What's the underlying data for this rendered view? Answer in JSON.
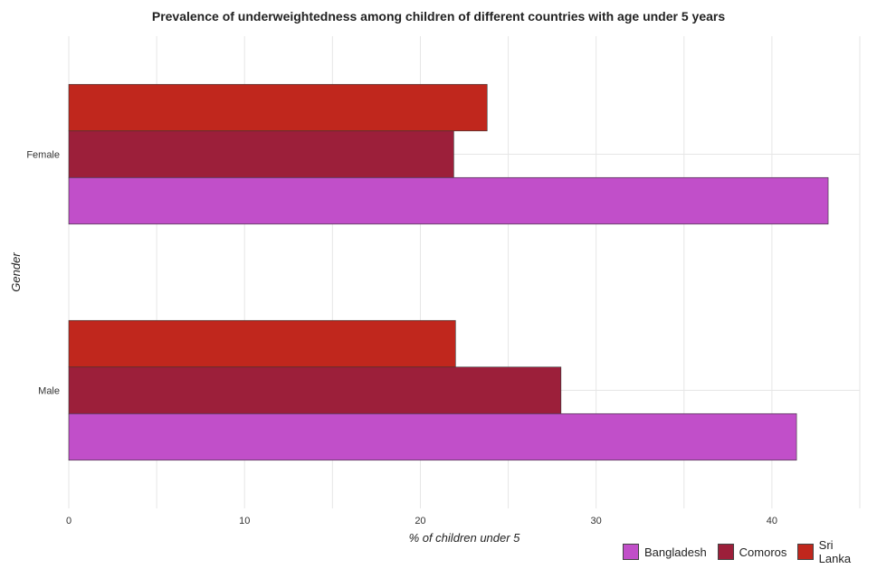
{
  "chart_data": {
    "type": "bar",
    "orientation": "horizontal",
    "title": "Prevalence of underweightedness among children of different countries with age under 5 years",
    "xlabel": "% of children under 5",
    "ylabel": "Gender",
    "categories": [
      "Female",
      "Male"
    ],
    "xlim": [
      0,
      45
    ],
    "xticks": [
      0,
      10,
      20,
      30,
      40
    ],
    "grid": true,
    "legend_position": "bottom-right",
    "series": [
      {
        "name": "Bangladesh",
        "color": "#c14fc9",
        "values": [
          43.2,
          41.4
        ]
      },
      {
        "name": "Comoros",
        "color": "#9c1f3a",
        "values": [
          21.9,
          28.0
        ]
      },
      {
        "name": "Sri Lanka",
        "color": "#c0271d",
        "values": [
          23.8,
          22.0
        ]
      }
    ]
  }
}
